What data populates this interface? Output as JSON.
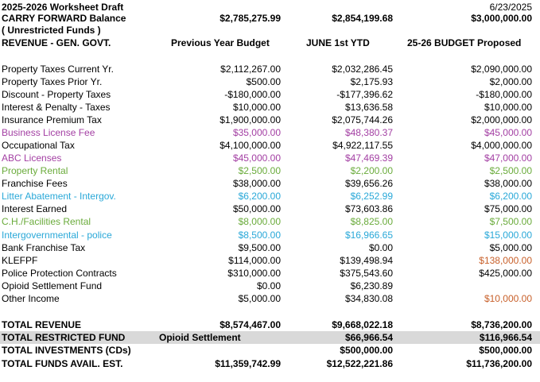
{
  "header": {
    "title": "2025-2026 Worksheet Draft",
    "date": "6/23/2025",
    "carry_forward": {
      "label": "CARRY FORWARD Balance",
      "prev": "$2,785,275.99",
      "ytd": "$2,854,199.68",
      "proposed": "$3,000,000.00"
    },
    "unrestricted": "( Unrestricted Funds )",
    "section_label": "REVENUE - GEN. GOVT.",
    "col_prev": "Previous Year Budget",
    "col_ytd": "JUNE 1st YTD",
    "col_proposed": "25-26  BUDGET Proposed"
  },
  "colors": {
    "purple": "#a33fa3",
    "green": "#6aab3b",
    "blue": "#29a8d8",
    "orange": "#c8602a",
    "shade": "#d9d9d9"
  },
  "rows": [
    {
      "label": "Property Taxes Current Yr.",
      "prev": "$2,112,267.00",
      "ytd": "$2,032,286.45",
      "proposed": "$2,090,000.00"
    },
    {
      "label": "Property Taxes Prior Yr.",
      "prev": "$500.00",
      "ytd": "$2,175.93",
      "proposed": "$2,000.00"
    },
    {
      "label": "Discount - Property Taxes",
      "prev": "-$180,000.00",
      "ytd": "-$177,396.62",
      "proposed": "-$180,000.00"
    },
    {
      "label": "Interest & Penalty - Taxes",
      "prev": "$10,000.00",
      "ytd": "$13,636.58",
      "proposed": "$10,000.00"
    },
    {
      "label": "Insurance Premium Tax",
      "prev": "$1,900,000.00",
      "ytd": "$2,075,744.26",
      "proposed": "$2,000,000.00"
    },
    {
      "label": "Business License Fee",
      "prev": "$35,000.00",
      "ytd": "$48,380.37",
      "proposed": "$45,000.00"
    },
    {
      "label": "Occupational Tax",
      "prev": "$4,100,000.00",
      "ytd": "$4,922,117.55",
      "proposed": "$4,000,000.00"
    },
    {
      "label": "ABC Licenses",
      "prev": "$45,000.00",
      "ytd": "$47,469.39",
      "proposed": "$47,000.00"
    },
    {
      "label": "Property Rental",
      "prev": "$2,500.00",
      "ytd": "$2,200.00",
      "proposed": "$2,500.00"
    },
    {
      "label": "Franchise Fees",
      "prev": "$38,000.00",
      "ytd": "$39,656.26",
      "proposed": "$38,000.00"
    },
    {
      "label": "Litter Abatement - Intergov.",
      "prev": "$6,200.00",
      "ytd": "$6,252.99",
      "proposed": "$6,200.00"
    },
    {
      "label": "Interest Earned",
      "prev": "$50,000.00",
      "ytd": "$73,603.86",
      "proposed": "$75,000.00"
    },
    {
      "label": "C.H./Facilities Rental",
      "prev": "$8,000.00",
      "ytd": "$8,825.00",
      "proposed": "$7,500.00"
    },
    {
      "label": "Intergovernmental - police",
      "prev": "$8,500.00",
      "ytd": "$16,966.65",
      "proposed": "$15,000.00"
    },
    {
      "label": "Bank Franchise Tax",
      "prev": "$9,500.00",
      "ytd": "$0.00",
      "proposed": "$5,000.00"
    },
    {
      "label": "KLEFPF",
      "prev": "$114,000.00",
      "ytd": "$139,498.94",
      "proposed": "$138,000.00"
    },
    {
      "label": "Police Protection Contracts",
      "prev": "$310,000.00",
      "ytd": "$375,543.60",
      "proposed": "$425,000.00"
    },
    {
      "label": "Opioid Settlement Fund",
      "prev": "$0.00",
      "ytd": "$6,230.89",
      "proposed": ""
    },
    {
      "label": "Other Income",
      "prev": "$5,000.00",
      "ytd": "$34,830.08",
      "proposed": "$10,000.00"
    }
  ],
  "totals": {
    "revenue": {
      "label": "TOTAL REVENUE",
      "prev": "$8,574,467.00",
      "ytd": "$9,668,022.18",
      "proposed": "$8,736,200.00"
    },
    "restricted": {
      "label": "TOTAL RESTRICTED FUND",
      "note": "Opioid Settlement",
      "ytd": "$66,966.54",
      "proposed": "$116,966.54"
    },
    "investments": {
      "label": "TOTAL INVESTMENTS (CDs)",
      "ytd": "$500,000.00",
      "proposed": "$500,000.00"
    },
    "funds": {
      "label": "TOTAL FUNDS AVAIL. EST.",
      "prev": "$11,359,742.99",
      "ytd": "$12,522,221.86",
      "proposed": "$11,736,200.00"
    }
  }
}
